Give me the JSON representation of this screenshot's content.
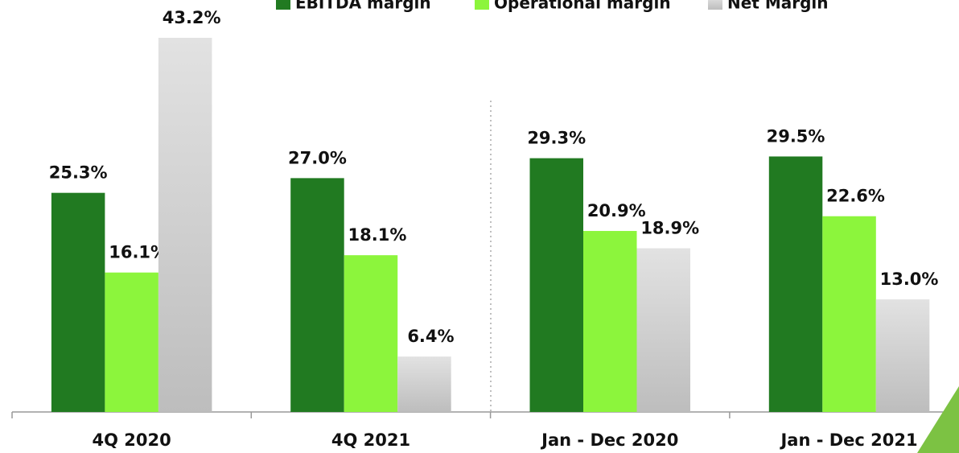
{
  "chart_data": {
    "type": "bar",
    "categories": [
      "4Q 2020",
      "4Q 2021",
      "Jan - Dec 2020",
      "Jan - Dec 2021"
    ],
    "series": [
      {
        "name": "EBITDA margin",
        "color": "#217a21",
        "values": [
          25.3,
          27.0,
          29.3,
          29.5
        ],
        "value_labels": [
          "25.3%",
          "27.0%",
          "29.3%",
          "29.5%"
        ]
      },
      {
        "name": "Operational margin",
        "color": "#8cf53c",
        "values": [
          16.1,
          18.1,
          20.9,
          22.6
        ],
        "value_labels": [
          "16.1%",
          "18.1%",
          "20.9%",
          "22.6%"
        ]
      },
      {
        "name": "Net Margin",
        "color": "#d0d0d0",
        "values": [
          43.2,
          6.4,
          18.9,
          13.0
        ],
        "value_labels": [
          "43.2%",
          "6.4%",
          "18.9%",
          "13.0%"
        ]
      }
    ],
    "legend": "top"
  }
}
